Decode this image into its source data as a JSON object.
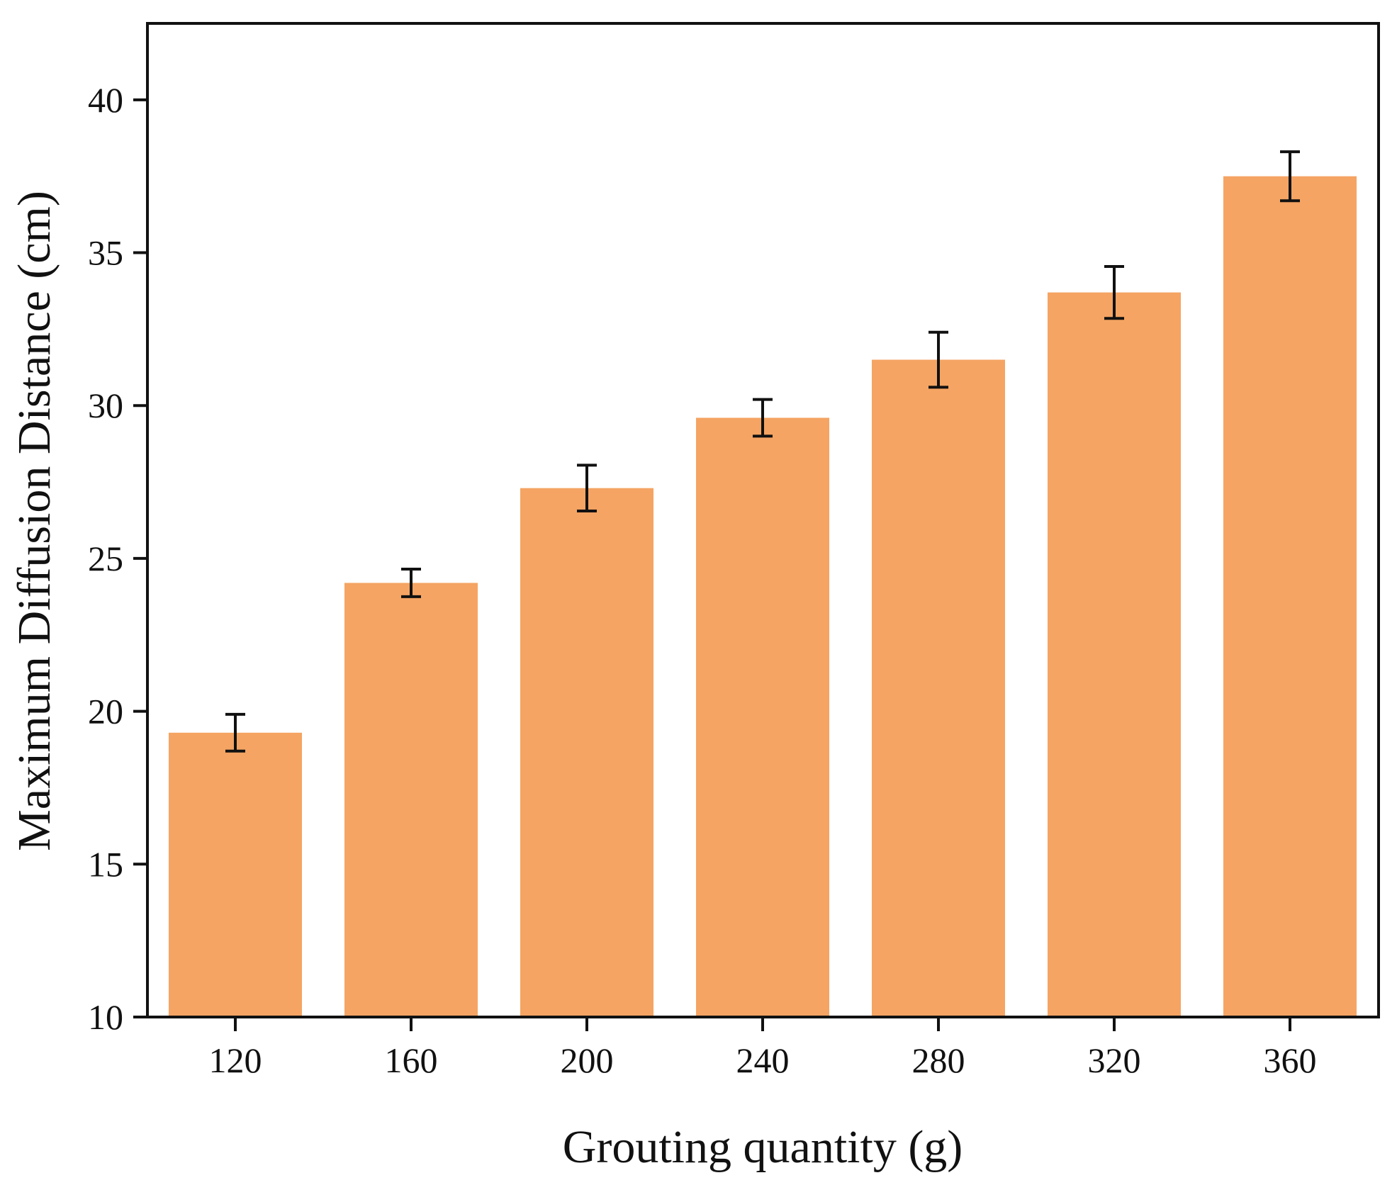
{
  "chart_data": {
    "type": "bar",
    "title": "",
    "xlabel": "Grouting quantity (g)",
    "ylabel": "Maximum Diffusion Distance (cm)",
    "categories": [
      "120",
      "160",
      "200",
      "240",
      "280",
      "320",
      "360"
    ],
    "values": [
      19.3,
      24.2,
      27.3,
      29.6,
      31.5,
      33.7,
      37.5
    ],
    "errors": [
      0.6,
      0.45,
      0.75,
      0.6,
      0.9,
      0.85,
      0.8
    ],
    "ylim": [
      10,
      42.5
    ],
    "yticks": [
      "10",
      "15",
      "20",
      "25",
      "30",
      "35",
      "40"
    ],
    "bar_color": "#F5A463",
    "error_color": "#111111",
    "grid": false,
    "legend": "none"
  }
}
